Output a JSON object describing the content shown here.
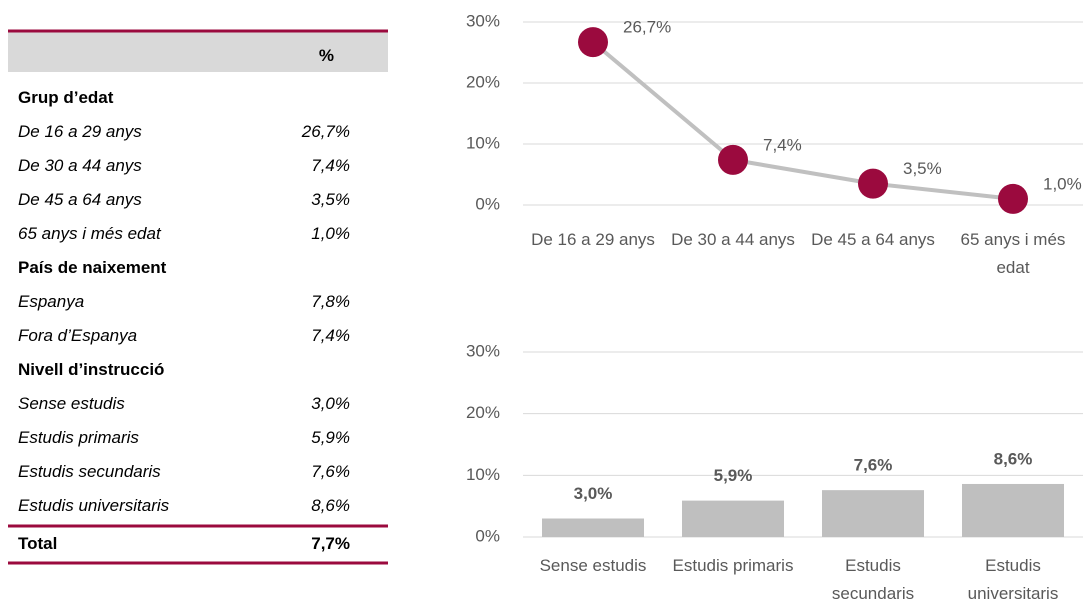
{
  "table": {
    "header": "%",
    "sections": [
      {
        "title": "Grup d’edat",
        "rows": [
          [
            "De 16 a 29 anys",
            "26,7%"
          ],
          [
            "De 30 a 44 anys",
            "7,4%"
          ],
          [
            "De 45 a 64 anys",
            "3,5%"
          ],
          [
            "65 anys i més edat",
            "1,0%"
          ]
        ]
      },
      {
        "title": "País de naixement",
        "rows": [
          [
            "Espanya",
            "7,8%"
          ],
          [
            "Fora d’Espanya",
            "7,4%"
          ]
        ]
      },
      {
        "title": "Nivell d’instrucció",
        "rows": [
          [
            "Sense estudis",
            "3,0%"
          ],
          [
            "Estudis primaris",
            "5,9%"
          ],
          [
            "Estudis secundaris",
            "7,6%"
          ],
          [
            "Estudis universitaris",
            "8,6%"
          ]
        ]
      }
    ],
    "total": [
      "Total",
      "7,7%"
    ]
  },
  "chart_data": [
    {
      "type": "line",
      "categories": [
        "De 16 a 29 anys",
        "De 30 a 44 anys",
        "De 45 a 64 anys",
        "65 anys i més edat"
      ],
      "values": [
        26.7,
        7.4,
        3.5,
        1.0
      ],
      "value_labels": [
        "26,7%",
        "7,4%",
        "3,5%",
        "1,0%"
      ],
      "color": "#c0c0c0",
      "marker_color": "#9b0a3e",
      "ylim": [
        0,
        30
      ],
      "yticks": [
        {
          "value": 0,
          "label": "0%"
        },
        {
          "value": 10,
          "label": "10%"
        },
        {
          "value": 20,
          "label": "20%"
        },
        {
          "value": 30,
          "label": "30%"
        }
      ],
      "grid": true
    },
    {
      "type": "bar",
      "categories": [
        "Sense estudis",
        "Estudis primaris",
        "Estudis secundaris",
        "Estudis universitaris"
      ],
      "values": [
        3.0,
        5.9,
        7.6,
        8.6
      ],
      "value_labels": [
        "3,0%",
        "5,9%",
        "7,6%",
        "8,6%"
      ],
      "color": "#bfbfbf",
      "ylim": [
        0,
        30
      ],
      "yticks": [
        {
          "value": 0,
          "label": "0%"
        },
        {
          "value": 10,
          "label": "10%"
        },
        {
          "value": 20,
          "label": "20%"
        },
        {
          "value": 30,
          "label": "30%"
        }
      ],
      "grid": true
    }
  ]
}
